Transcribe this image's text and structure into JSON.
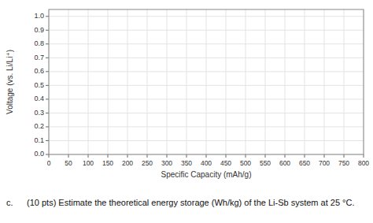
{
  "chart_data": {
    "type": "line",
    "xlabel": "Specific Capacity (mAh/g)",
    "ylabel": "Voltage (vs. Li/Li⁺)",
    "annotations": [
      "c.",
      "(10 pts) Estimate the theoretical energy storage (Wh/kg) of the Li-Sb system at 25 °C."
    ],
    "xlim": [
      0,
      800
    ],
    "ylim": [
      0.0,
      1.05
    ],
    "xticks": [
      0,
      50,
      100,
      150,
      200,
      250,
      300,
      350,
      400,
      450,
      500,
      550,
      600,
      650,
      700,
      750,
      800
    ],
    "yticks": [
      {
        "value": 0.0,
        "label": "0.0"
      },
      0.1,
      0.2,
      0.3,
      0.4,
      0.5,
      0.6,
      0.7,
      0.8,
      0.9,
      {
        "value": 1.0,
        "label": "1.0"
      }
    ],
    "grid": true
  }
}
